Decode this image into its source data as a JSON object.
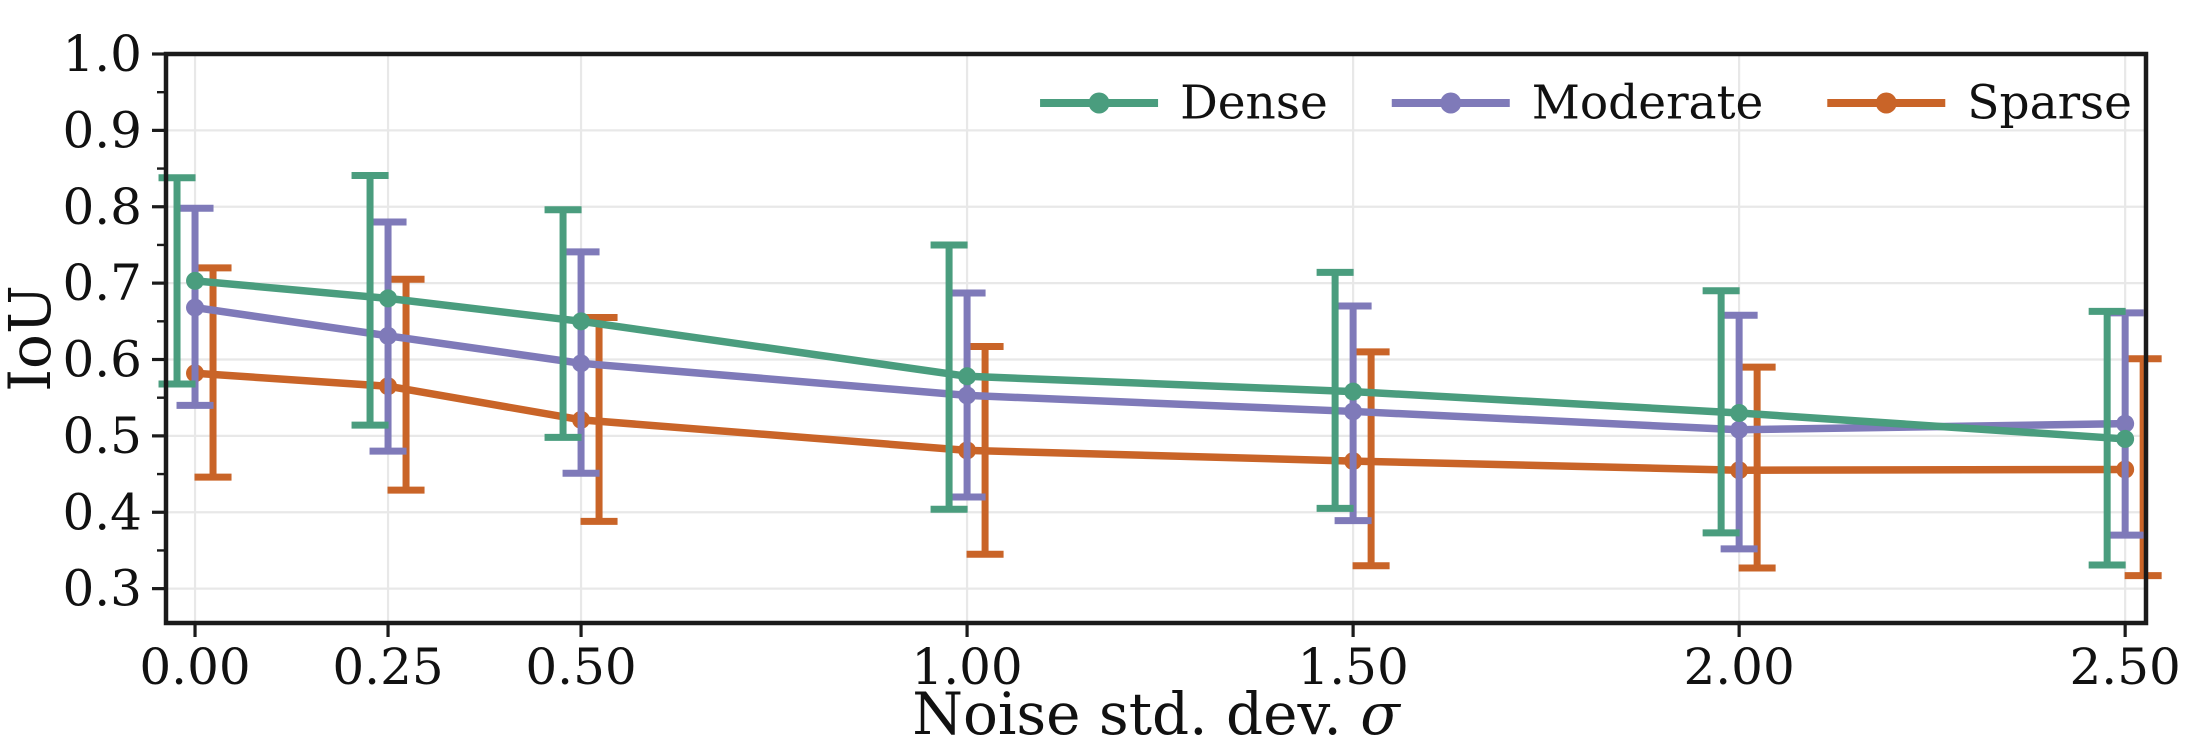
{
  "figure": {
    "background": "#ffffff",
    "grid_color": "#e8e8e8",
    "spine_color": "#1a1a1a",
    "text_color": "#111111"
  },
  "chart_data": {
    "type": "line",
    "title": "",
    "xlabel": "Noise std. dev. σ",
    "ylabel": "IoU",
    "x": [
      0.0,
      0.25,
      0.5,
      1.0,
      1.5,
      2.0,
      2.5
    ],
    "x_tick_labels": [
      "0.00",
      "0.25",
      "0.50",
      "1.00",
      "1.50",
      "2.00",
      "2.50"
    ],
    "y_ticks": [
      0.3,
      0.4,
      0.5,
      0.6,
      0.7,
      0.8,
      0.9,
      1.0
    ],
    "y_tick_labels": [
      "0.3",
      "0.4",
      "0.5",
      "0.6",
      "0.7",
      "0.8",
      "0.9",
      "1.0"
    ],
    "xlim": [
      -0.0376,
      2.527
    ],
    "ylim": [
      0.255,
      1.0
    ],
    "grid": true,
    "error_bars": true,
    "legend": {
      "position": "upper-right-inside",
      "orientation": "horizontal",
      "frame": false,
      "entries": [
        "Dense",
        "Moderate",
        "Sparse"
      ]
    },
    "series": [
      {
        "name": "Dense",
        "color": "#4a9d7e",
        "marker": "circle",
        "means": [
          0.703,
          0.68,
          0.65,
          0.578,
          0.558,
          0.53,
          0.496
        ],
        "upper": [
          0.838,
          0.841,
          0.796,
          0.75,
          0.714,
          0.69,
          0.663
        ],
        "lower": [
          0.568,
          0.514,
          0.498,
          0.404,
          0.405,
          0.373,
          0.331
        ]
      },
      {
        "name": "Moderate",
        "color": "#7f7ab9",
        "marker": "circle",
        "means": [
          0.668,
          0.631,
          0.595,
          0.553,
          0.532,
          0.508,
          0.516
        ],
        "upper": [
          0.798,
          0.78,
          0.741,
          0.687,
          0.67,
          0.658,
          0.661
        ],
        "lower": [
          0.54,
          0.48,
          0.451,
          0.42,
          0.389,
          0.352,
          0.37
        ]
      },
      {
        "name": "Sparse",
        "color": "#c96428",
        "marker": "circle",
        "means": [
          0.582,
          0.565,
          0.521,
          0.481,
          0.467,
          0.455,
          0.456
        ],
        "upper": [
          0.72,
          0.705,
          0.655,
          0.617,
          0.61,
          0.59,
          0.601
        ],
        "lower": [
          0.446,
          0.429,
          0.388,
          0.345,
          0.33,
          0.327,
          0.317
        ]
      }
    ]
  }
}
